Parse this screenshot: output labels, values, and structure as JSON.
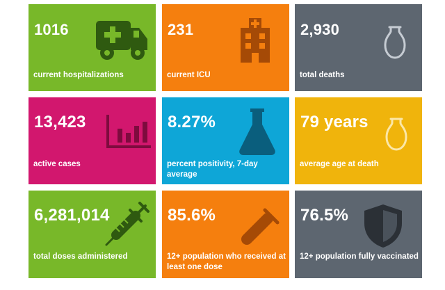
{
  "tiles": [
    {
      "value": "1016",
      "label": "current hospitalizations",
      "color": "#78b829",
      "icon": "ambulance-icon"
    },
    {
      "value": "231",
      "label": "current ICU",
      "color": "#f57f0e",
      "icon": "hospital-icon"
    },
    {
      "value": "2,930",
      "label": "total deaths",
      "color": "#5d6670",
      "icon": "urn-icon"
    },
    {
      "value": "13,423",
      "label": "active cases",
      "color": "#d2176e",
      "icon": "bar-chart-icon"
    },
    {
      "value": "8.27%",
      "label": "percent positivity, 7-day average",
      "color": "#0ea6d7",
      "icon": "flask-icon"
    },
    {
      "value": "79 years",
      "label": "average age at death",
      "color": "#f0b40c",
      "icon": "urn-icon"
    },
    {
      "value": "6,281,014",
      "label": "total doses administered",
      "color": "#78b829",
      "icon": "syringe-icon"
    },
    {
      "value": "85.6%",
      "label": "12+ population who received at least one dose",
      "color": "#f57f0e",
      "icon": "test-tube-icon"
    },
    {
      "value": "76.5%",
      "label": "12+ population fully vaccinated",
      "color": "#5d6670",
      "icon": "shield-icon"
    }
  ]
}
